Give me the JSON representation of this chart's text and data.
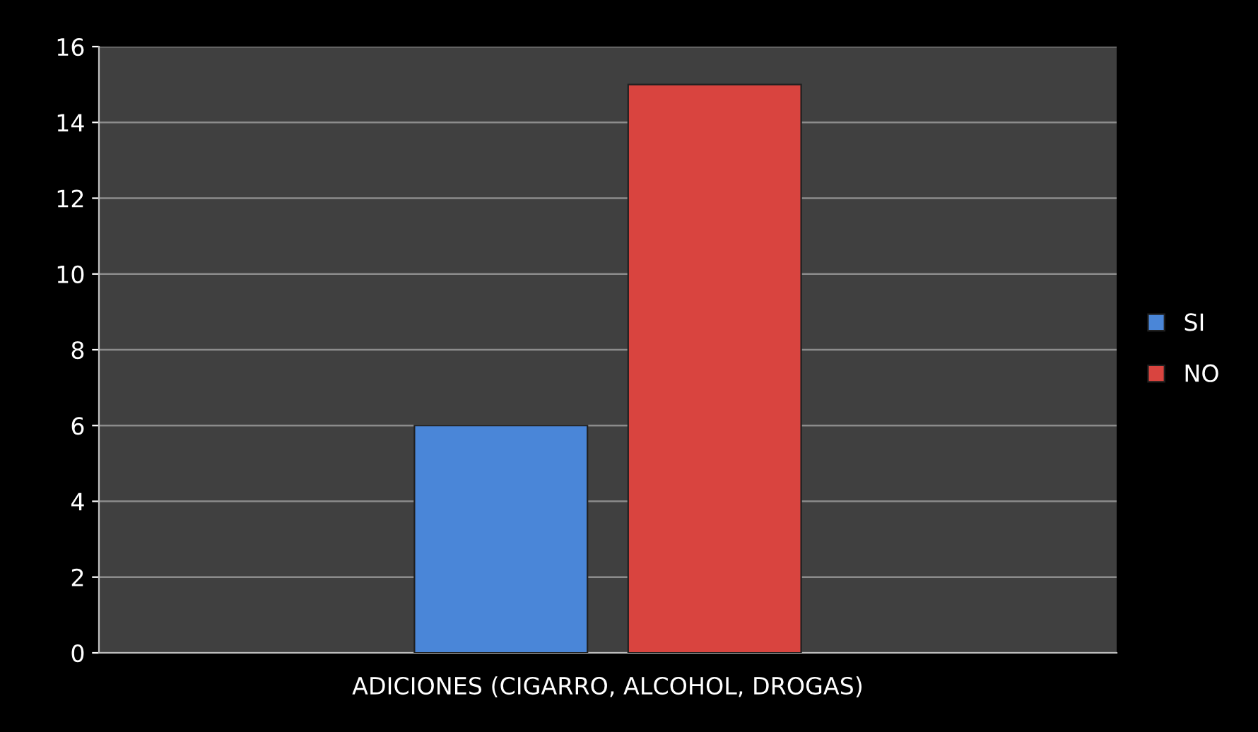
{
  "chart_data": {
    "type": "bar",
    "categories": [
      "ADICIONES (CIGARRO, ALCOHOL, DROGAS)"
    ],
    "series": [
      {
        "name": "SI",
        "color": "#4a86d8",
        "values": [
          6
        ]
      },
      {
        "name": "NO",
        "color": "#d9443f",
        "values": [
          15
        ]
      }
    ],
    "ylim": [
      0,
      16
    ],
    "yticks": [
      0,
      2,
      4,
      6,
      8,
      10,
      12,
      14,
      16
    ],
    "grid": "y",
    "legend": "right"
  }
}
